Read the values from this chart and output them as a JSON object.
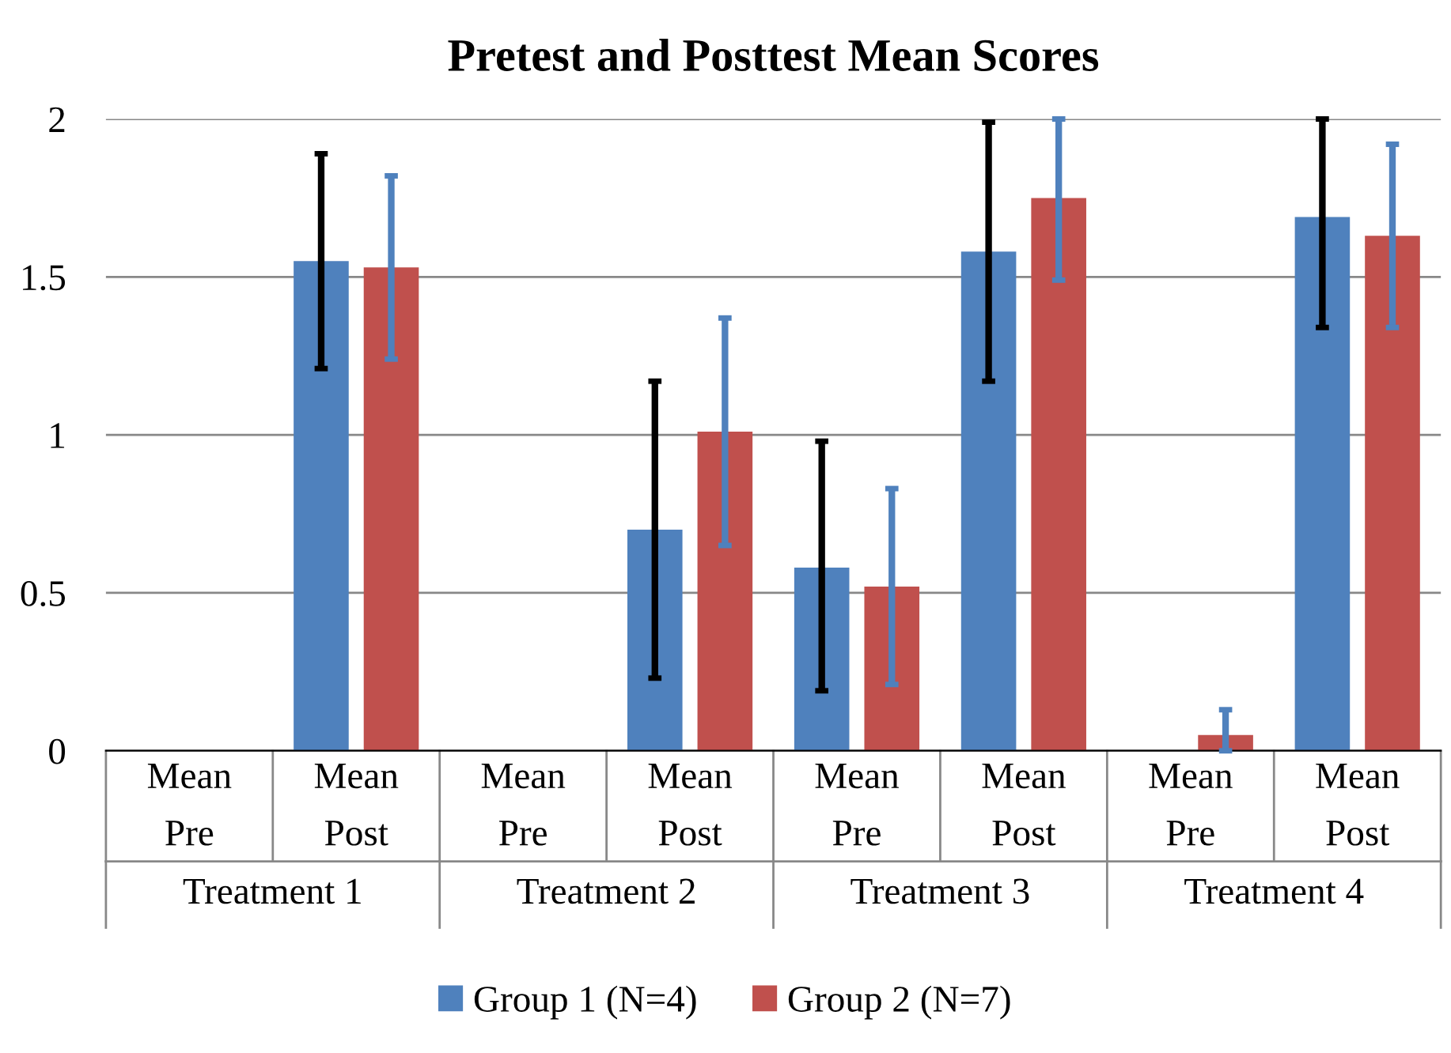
{
  "chart_data": {
    "type": "bar",
    "title": "Pretest and Posttest Mean Scores",
    "categories": [
      "Mean\nPre",
      "Mean\nPost",
      "Mean\nPre",
      "Mean\nPost",
      "Mean\nPre",
      "Mean\nPost",
      "Mean\nPre",
      "Mean\nPost"
    ],
    "series": [
      {
        "name": "Group 1 (N=4)",
        "color": "#4f81bd",
        "values": [
          0,
          1.55,
          0,
          0.7,
          0.58,
          1.58,
          0,
          1.69
        ],
        "errors": [
          null,
          [
            1.21,
            1.89
          ],
          null,
          [
            0.23,
            1.17
          ],
          [
            0.19,
            0.98
          ],
          [
            1.17,
            1.99
          ],
          null,
          [
            1.34,
            2.0
          ]
        ]
      },
      {
        "name": "Group 2 (N=7)",
        "color": "#c0504d",
        "values": [
          0,
          1.53,
          0,
          1.01,
          0.52,
          1.75,
          0.05,
          1.63
        ],
        "errors": [
          null,
          [
            1.24,
            1.82
          ],
          null,
          [
            0.65,
            1.37
          ],
          [
            0.21,
            0.83
          ],
          [
            1.49,
            2.0
          ],
          [
            0,
            0.13
          ],
          [
            1.34,
            1.92
          ]
        ]
      }
    ],
    "annotations": [
      "Treatment 1",
      "Treatment 2",
      "Treatment 3",
      "Treatment 4"
    ],
    "ylim": [
      0,
      2
    ],
    "yticks": [
      0,
      0.5,
      1,
      1.5,
      2
    ],
    "grid": "y",
    "legend": "bottom"
  }
}
